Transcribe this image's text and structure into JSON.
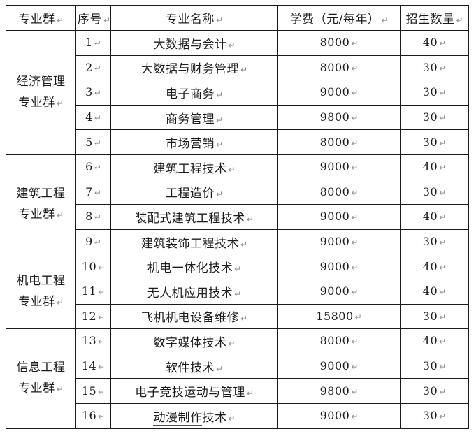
{
  "colors": {
    "background": "#ffffff",
    "border": "#1a1a1a",
    "text": "#1c1c1c",
    "mark": "#8c8c8c",
    "link_underline": "#2f5496"
  },
  "table": {
    "mark": "↵",
    "headers": {
      "group": "专业群",
      "index": "序号",
      "major": "专业名称",
      "tuition": "学费（元/每年）",
      "quota": "招生数量"
    },
    "groups": [
      {
        "name": "经济管理专业群",
        "rows": [
          {
            "no": "1",
            "major": "大数据与会计",
            "tuition": "8000",
            "quota": "40"
          },
          {
            "no": "2",
            "major": "大数据与财务管理",
            "tuition": "8000",
            "quota": "30"
          },
          {
            "no": "3",
            "major": "电子商务",
            "tuition": "9000",
            "quota": "30"
          },
          {
            "no": "4",
            "major": "商务管理",
            "tuition": "9800",
            "quota": "30"
          },
          {
            "no": "5",
            "major": "市场营销",
            "tuition": "8000",
            "quota": "30"
          }
        ]
      },
      {
        "name": "建筑工程专业群",
        "rows": [
          {
            "no": "6",
            "major": "建筑工程技术",
            "tuition": "9000",
            "quota": "40"
          },
          {
            "no": "7",
            "major": "工程造价",
            "tuition": "8000",
            "quota": "30"
          },
          {
            "no": "8",
            "major": "装配式建筑工程技术",
            "tuition": "9000",
            "quota": "40"
          },
          {
            "no": "9",
            "major": "建筑装饰工程技术",
            "tuition": "9000",
            "quota": "30"
          }
        ]
      },
      {
        "name": "机电工程专业群",
        "rows": [
          {
            "no": "10",
            "major": "机电一体化技术",
            "tuition": "9000",
            "quota": "40"
          },
          {
            "no": "11",
            "major": "无人机应用技术",
            "tuition": "9000",
            "quota": "40"
          },
          {
            "no": "12",
            "major": "飞机机电设备维修",
            "tuition": "15800",
            "quota": "30"
          }
        ]
      },
      {
        "name": "信息工程专业群",
        "rows": [
          {
            "no": "13",
            "major": "数字媒体技术",
            "tuition": "8000",
            "quota": "40"
          },
          {
            "no": "14",
            "major": "软件技术",
            "tuition": "9000",
            "quota": "30"
          },
          {
            "no": "15",
            "major": "电子竞技运动与管理",
            "tuition": "9800",
            "quota": "30"
          },
          {
            "no": "16",
            "major_underlined": "动漫制作",
            "major": "技术",
            "tuition": "9000",
            "quota": "30"
          }
        ]
      }
    ]
  }
}
